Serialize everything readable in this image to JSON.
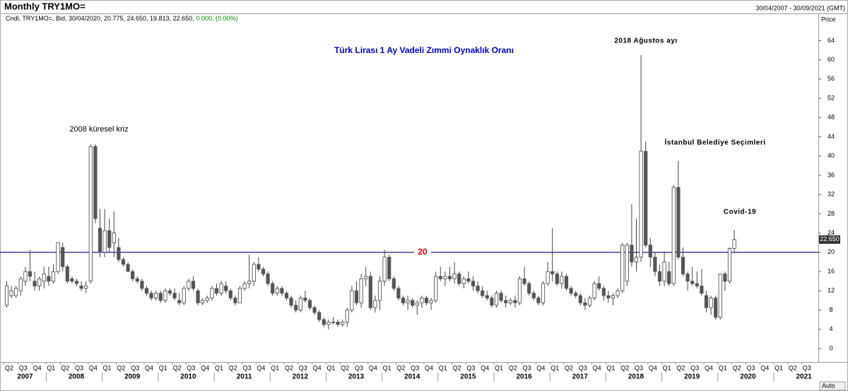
{
  "chart_data": {
    "type": "candlestick",
    "title": "Monthly TRY1MO=",
    "date_range": "30/04/2007 - 30/09/2021 (GMT)",
    "legend": {
      "prefix": "Cndl, TRY1MO=, Bid, 30/04/2020, 20.775, 24.650, 19.813, 22.650,",
      "change": "0.000, (0.00%)"
    },
    "chart_title": "Türk Lirası 1 Ay Vadeli Zımmi Oynaklık Oranı",
    "annotations": [
      "2008 küresel kriz",
      "2018 Ağustos ayı",
      "İstanbul Belediye Seçimleri",
      "Covid-19"
    ],
    "y_axis_label": "Price",
    "scale_button": "Auto",
    "hline": 20,
    "last_price": {
      "value": 22.65,
      "label": "22.650"
    },
    "ylim": [
      -2.8,
      69.5
    ],
    "yticks": [
      0,
      4,
      8,
      12,
      16,
      20,
      24,
      28,
      32,
      36,
      40,
      44,
      48,
      52,
      56,
      60,
      64
    ],
    "quarters": [
      "Q2",
      "Q3",
      "Q4",
      "Q1",
      "Q2",
      "Q3",
      "Q4",
      "Q1",
      "Q2",
      "Q3",
      "Q4",
      "Q1",
      "Q2",
      "Q3",
      "Q4",
      "Q1",
      "Q2",
      "Q3",
      "Q4",
      "Q1",
      "Q2",
      "Q3",
      "Q4",
      "Q1",
      "Q2",
      "Q3",
      "Q4",
      "Q1",
      "Q2",
      "Q3",
      "Q4",
      "Q1",
      "Q2",
      "Q3",
      "Q4",
      "Q1",
      "Q2",
      "Q3",
      "Q4",
      "Q1",
      "Q2",
      "Q3",
      "Q4",
      "Q1",
      "Q2",
      "Q3",
      "Q4",
      "Q1",
      "Q2",
      "Q3",
      "Q4",
      "Q1",
      "Q2",
      "Q3",
      "Q4",
      "Q1",
      "Q2",
      "Q3"
    ],
    "years": [
      2007,
      2008,
      2009,
      2010,
      2011,
      2012,
      2013,
      2014,
      2015,
      2016,
      2017,
      2018,
      2019,
      2020,
      2021
    ],
    "up_color": "#ffffff",
    "down_color": "#555555",
    "line_color": "#1a1a8c",
    "hline_label_color": "#e00000",
    "candles": [
      [
        9,
        14,
        8.5,
        13
      ],
      [
        11,
        13,
        10.5,
        12
      ],
      [
        11,
        13,
        10.5,
        12.5
      ],
      [
        12,
        15,
        11,
        14.5
      ],
      [
        14,
        17,
        13,
        16
      ],
      [
        16,
        20.5,
        14,
        15
      ],
      [
        14,
        16,
        12,
        13
      ],
      [
        13,
        15,
        12,
        14.5
      ],
      [
        14,
        17,
        12.5,
        15.5
      ],
      [
        15,
        17,
        13,
        14
      ],
      [
        14,
        17.5,
        13.5,
        16
      ],
      [
        16,
        22,
        15.5,
        22
      ],
      [
        21,
        22,
        16,
        17
      ],
      [
        17,
        17.5,
        13.5,
        14
      ],
      [
        14.5,
        15,
        13.5,
        14
      ],
      [
        14,
        14.5,
        13,
        13.5
      ],
      [
        13,
        14,
        12,
        12.5
      ],
      [
        12.5,
        14,
        11.5,
        13
      ],
      [
        14,
        42.5,
        13.5,
        42
      ],
      [
        42,
        42.5,
        26,
        27
      ],
      [
        25,
        29,
        19,
        20
      ],
      [
        20,
        29,
        19,
        24.5
      ],
      [
        24.5,
        27,
        20,
        21
      ],
      [
        22,
        28.5,
        19,
        24
      ],
      [
        21,
        23,
        18,
        18.5
      ],
      [
        18.5,
        19,
        17,
        17.5
      ],
      [
        17.5,
        18,
        16,
        16
      ],
      [
        16,
        16.5,
        14,
        14.5
      ],
      [
        14.5,
        15,
        13.5,
        14
      ],
      [
        14,
        14.5,
        12,
        12.5
      ],
      [
        12.5,
        13,
        11,
        11.5
      ],
      [
        11.5,
        12,
        10,
        10.5
      ],
      [
        10.5,
        12,
        10,
        11.5
      ],
      [
        11.5,
        12,
        9.5,
        10
      ],
      [
        10,
        12.5,
        9.5,
        12
      ],
      [
        12,
        12.5,
        11,
        11.5
      ],
      [
        11.5,
        12.5,
        10,
        10.5
      ],
      [
        10,
        11.5,
        9,
        9.5
      ],
      [
        9.5,
        13,
        9,
        12.5
      ],
      [
        12.5,
        14.5,
        12,
        14
      ],
      [
        14,
        15,
        12,
        12.5
      ],
      [
        12,
        12.5,
        9,
        9.5
      ],
      [
        9.5,
        10.5,
        9,
        10
      ],
      [
        10,
        11,
        9.5,
        10.5
      ],
      [
        10.5,
        13,
        10,
        12.5
      ],
      [
        12.5,
        13.5,
        11,
        11.5
      ],
      [
        11.5,
        14,
        11,
        13.5
      ],
      [
        13,
        14,
        11.5,
        12
      ],
      [
        12,
        12.5,
        10,
        10.5
      ],
      [
        10.5,
        11,
        9,
        9.5
      ],
      [
        9.5,
        13,
        9.5,
        12.5
      ],
      [
        12.5,
        14,
        12,
        13.5
      ],
      [
        13.5,
        19.5,
        12.5,
        14
      ],
      [
        14,
        18,
        13,
        17.5
      ],
      [
        17.5,
        19,
        16,
        16.5
      ],
      [
        16.5,
        17,
        15,
        15.5
      ],
      [
        15.5,
        16,
        13,
        13.5
      ],
      [
        13.5,
        14,
        11,
        11.5
      ],
      [
        11.5,
        13,
        11,
        12.5
      ],
      [
        12.5,
        13,
        11,
        11.5
      ],
      [
        11.5,
        12,
        10,
        10.5
      ],
      [
        10.5,
        11,
        8.5,
        9
      ],
      [
        9,
        10,
        7.5,
        8
      ],
      [
        8,
        11,
        7.5,
        10.5
      ],
      [
        10.5,
        12,
        9.5,
        10
      ],
      [
        10,
        10.5,
        8,
        8.5
      ],
      [
        8.5,
        9,
        7,
        7.5
      ],
      [
        7.5,
        8,
        5.5,
        6
      ],
      [
        6,
        6.5,
        4.5,
        5
      ],
      [
        5,
        6,
        4,
        5.5
      ],
      [
        5.5,
        6.5,
        5,
        5.5
      ],
      [
        5.5,
        6,
        4.5,
        5
      ],
      [
        5,
        6,
        4.5,
        5.5
      ],
      [
        5.5,
        8.5,
        4.5,
        8
      ],
      [
        8,
        13,
        7.5,
        12
      ],
      [
        12,
        14,
        9,
        9.5
      ],
      [
        9.5,
        15.5,
        8.5,
        14.5
      ],
      [
        14.5,
        17,
        13,
        15
      ],
      [
        15,
        16,
        8,
        8.5
      ],
      [
        8.5,
        11,
        7.5,
        10
      ],
      [
        10,
        15,
        8,
        14
      ],
      [
        14,
        20.5,
        13,
        19
      ],
      [
        19,
        19.5,
        14,
        14.5
      ],
      [
        14.5,
        15,
        12,
        12.5
      ],
      [
        12.5,
        13,
        10,
        10.5
      ],
      [
        10.5,
        11,
        9,
        9.5
      ],
      [
        9.5,
        11,
        8,
        10
      ],
      [
        10,
        10.5,
        8.5,
        9
      ],
      [
        9,
        10,
        7,
        9.5
      ],
      [
        9.5,
        11,
        8.5,
        10.5
      ],
      [
        10.5,
        11,
        9,
        9.5
      ],
      [
        9.5,
        10.5,
        8,
        10
      ],
      [
        10,
        16,
        9.5,
        15
      ],
      [
        15,
        17,
        14,
        14.5
      ],
      [
        14.5,
        16,
        13,
        15
      ],
      [
        15,
        17,
        14,
        14.5
      ],
      [
        14.5,
        18,
        13.5,
        15.5
      ],
      [
        15.5,
        16,
        13,
        13.5
      ],
      [
        13.5,
        15,
        12.5,
        14.5
      ],
      [
        14.5,
        16,
        13.5,
        14
      ],
      [
        14,
        15,
        12,
        13
      ],
      [
        13,
        14,
        11.5,
        12
      ],
      [
        12,
        13,
        10.5,
        11
      ],
      [
        11,
        12,
        10,
        10.5
      ],
      [
        10.5,
        11,
        8.5,
        9
      ],
      [
        9,
        12,
        8.5,
        11.5
      ],
      [
        11.5,
        12,
        9.5,
        10
      ],
      [
        10,
        11,
        8.5,
        9.5
      ],
      [
        9.5,
        10.5,
        9,
        10
      ],
      [
        10,
        11,
        8.5,
        9.5
      ],
      [
        9.5,
        15,
        9,
        14.5
      ],
      [
        14.5,
        17,
        13,
        13.5
      ],
      [
        13.5,
        14,
        11,
        11.5
      ],
      [
        11.5,
        12,
        10,
        10.5
      ],
      [
        10.5,
        11,
        9,
        9.5
      ],
      [
        9.5,
        14,
        9,
        13.5
      ],
      [
        13.5,
        18,
        13,
        16
      ],
      [
        16,
        25,
        14,
        15.5
      ],
      [
        15.5,
        16,
        13,
        13.5
      ],
      [
        13.5,
        16,
        12.5,
        15
      ],
      [
        15,
        15.5,
        12,
        12.5
      ],
      [
        12.5,
        13,
        11,
        11.5
      ],
      [
        11.5,
        12,
        10.5,
        11
      ],
      [
        11,
        11.5,
        9,
        9.5
      ],
      [
        9.5,
        10.5,
        8,
        9
      ],
      [
        9,
        11,
        8.5,
        10.5
      ],
      [
        10.5,
        14,
        10,
        13.5
      ],
      [
        13.5,
        15,
        12,
        12.5
      ],
      [
        12.5,
        13,
        10,
        11
      ],
      [
        11,
        12,
        9.5,
        10.5
      ],
      [
        10.5,
        11.5,
        9,
        11
      ],
      [
        11,
        12.5,
        10.5,
        12
      ],
      [
        12,
        22,
        11.5,
        21.5
      ],
      [
        14,
        22,
        13,
        21.5
      ],
      [
        21.5,
        30,
        17,
        18
      ],
      [
        18,
        27,
        16,
        19
      ],
      [
        19,
        61,
        18,
        41
      ],
      [
        41,
        43,
        21,
        21.5
      ],
      [
        21.5,
        23,
        17,
        19
      ],
      [
        19,
        20,
        15,
        16
      ],
      [
        16,
        17.5,
        13,
        14
      ],
      [
        14,
        20,
        13,
        18
      ],
      [
        16,
        18,
        13,
        13.5
      ],
      [
        13.5,
        34,
        13,
        33.5
      ],
      [
        33.5,
        39,
        18.5,
        19
      ],
      [
        19,
        21,
        15,
        15.5
      ],
      [
        15.5,
        16,
        12,
        14
      ],
      [
        14,
        17,
        13,
        13.5
      ],
      [
        13.5,
        16,
        12.5,
        13
      ],
      [
        13,
        16.5,
        11,
        11.5
      ],
      [
        11,
        12,
        7.5,
        8.5
      ],
      [
        8.5,
        11,
        7,
        10.5
      ],
      [
        10.5,
        11,
        6,
        6.5
      ],
      [
        6.5,
        15.5,
        6,
        15.5
      ],
      [
        15.5,
        16,
        12,
        14
      ],
      [
        14,
        21,
        13.5,
        20.8
      ],
      [
        20.775,
        24.65,
        19.813,
        22.65
      ]
    ]
  }
}
